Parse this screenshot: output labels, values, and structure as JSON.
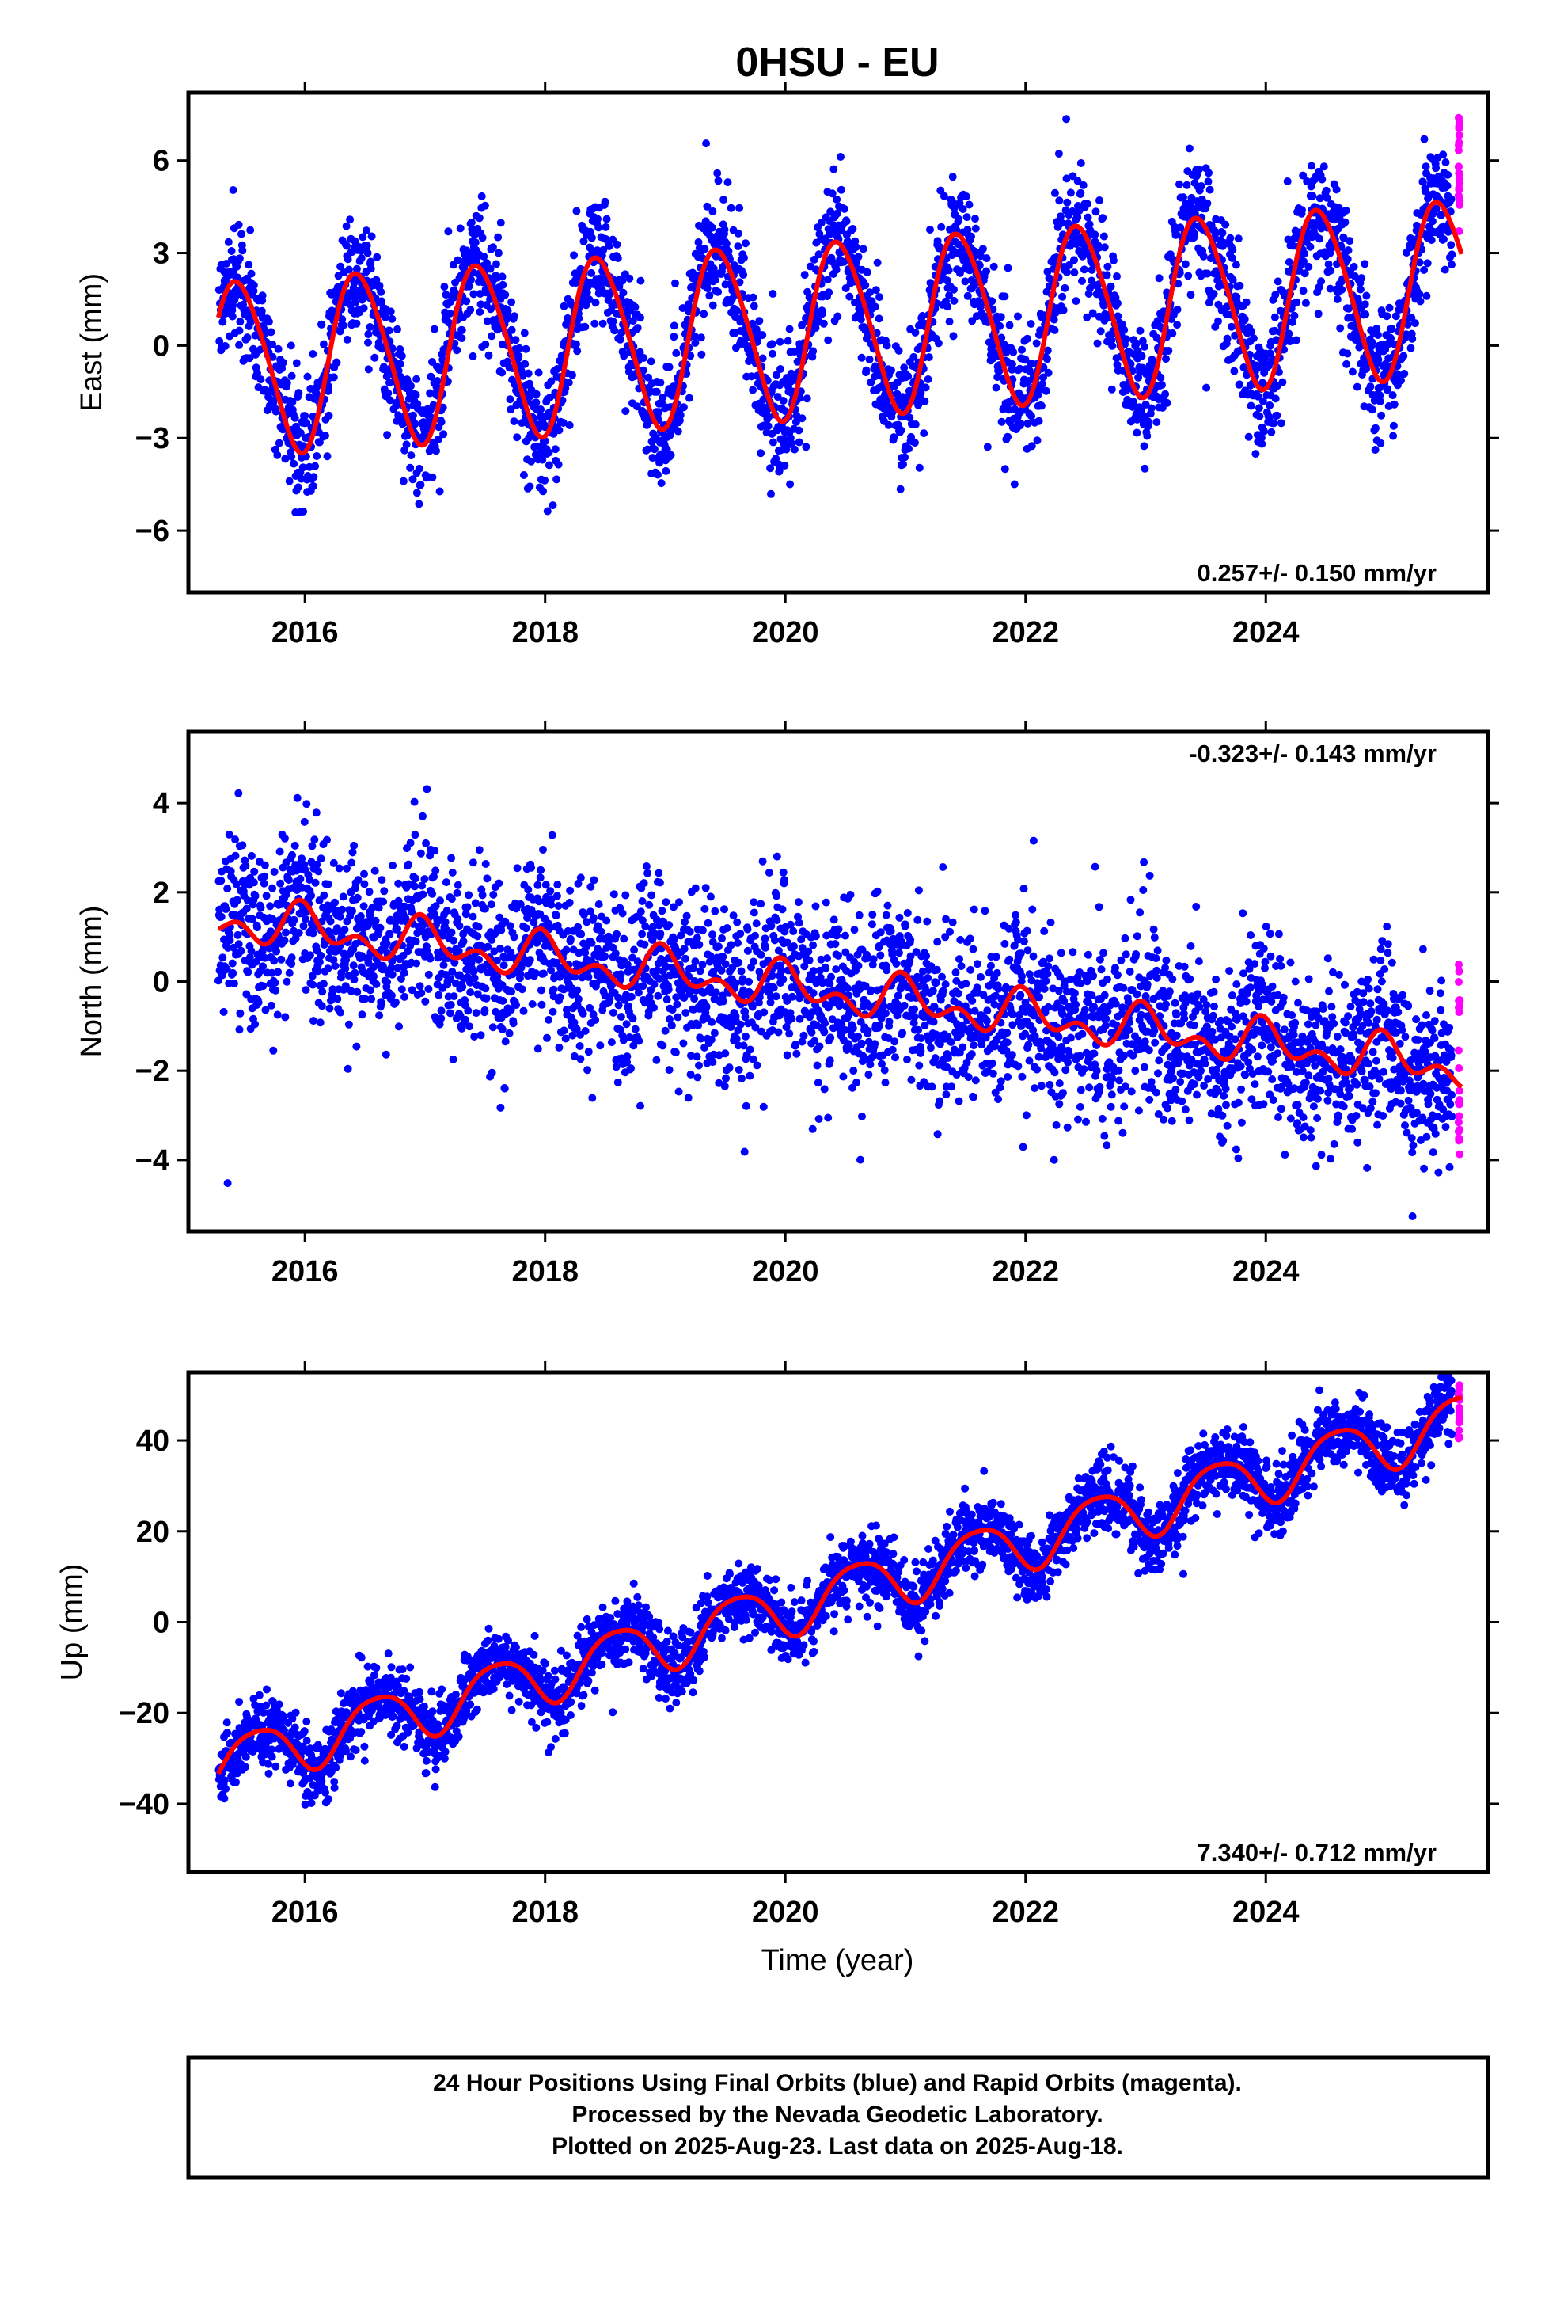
{
  "title": "0HSU - EU",
  "colors": {
    "final_orbits": "#0000ff",
    "rapid_orbits": "#ff00ff",
    "model_fit": "#ff0000",
    "frame": "#000000"
  },
  "chart_data": [
    {
      "type": "scatter",
      "name": "east",
      "ylabel": "East (mm)",
      "xlabel": "",
      "xlim": [
        2015.03,
        2025.85
      ],
      "ylim": [
        -8,
        8.2
      ],
      "yticks": [
        -6,
        -3,
        0,
        3,
        6
      ],
      "xticks": [
        2016,
        2018,
        2020,
        2022,
        2024
      ],
      "rate_label": "0.257+/- 0.150 mm/yr",
      "rate_position": "bottom-right",
      "data_start": 2015.28,
      "data_end": 2025.63,
      "rapid_start": 2025.55,
      "model": {
        "offset": -0.8,
        "rate": 0.257,
        "annual_amplitude": 2.8,
        "annual_peak": 0.45,
        "semiannual_amplitude": 0.3,
        "semiannual_peak": 0.3
      },
      "scatter_sigma": 1.0,
      "rapid_range": [
        3.4,
        7.4
      ],
      "series": [
        {
          "name": "Final Orbits",
          "kind": "points",
          "color": "#0000ff"
        },
        {
          "name": "Rapid Orbits",
          "kind": "points",
          "color": "#ff00ff"
        },
        {
          "name": "Model",
          "kind": "line",
          "color": "#ff0000"
        }
      ]
    },
    {
      "type": "scatter",
      "name": "north",
      "ylabel": "North (mm)",
      "xlabel": "",
      "xlim": [
        2015.03,
        2025.85
      ],
      "ylim": [
        -5.6,
        5.6
      ],
      "yticks": [
        -4,
        -2,
        0,
        2,
        4
      ],
      "xticks": [
        2016,
        2018,
        2020,
        2022,
        2024
      ],
      "rate_label": "-0.323+/- 0.143 mm/yr",
      "rate_position": "top-right",
      "data_start": 2015.28,
      "data_end": 2025.63,
      "rapid_start": 2025.55,
      "model": {
        "offset": 1.5,
        "rate": -0.323,
        "annual_amplitude": 0.35,
        "annual_peak": 0.0,
        "semiannual_amplitude": 0.3,
        "semiannual_peak": 0.45
      },
      "scatter_sigma": 0.95,
      "rapid_range": [
        -3.9,
        0.4
      ],
      "series": [
        {
          "name": "Final Orbits",
          "kind": "points",
          "color": "#0000ff"
        },
        {
          "name": "Rapid Orbits",
          "kind": "points",
          "color": "#ff00ff"
        },
        {
          "name": "Model",
          "kind": "line",
          "color": "#ff0000"
        }
      ]
    },
    {
      "type": "scatter",
      "name": "up",
      "ylabel": "Up (mm)",
      "xlabel": "Time (year)",
      "xlim": [
        2015.03,
        2025.85
      ],
      "ylim": [
        -55,
        55
      ],
      "yticks": [
        -40,
        -20,
        0,
        20,
        40
      ],
      "xticks": [
        2016,
        2018,
        2020,
        2022,
        2024
      ],
      "rate_label": "7.340+/- 0.712 mm/yr",
      "rate_position": "bottom-right",
      "data_start": 2015.28,
      "data_end": 2025.63,
      "rapid_start": 2025.55,
      "model": {
        "offset": -33.5,
        "rate": 7.34,
        "annual_amplitude": 6.0,
        "annual_peak": 0.6,
        "semiannual_amplitude": 1.0,
        "semiannual_peak": 0.35
      },
      "scatter_sigma": 3.8,
      "rapid_range": [
        40,
        53
      ],
      "series": [
        {
          "name": "Final Orbits",
          "kind": "points",
          "color": "#0000ff"
        },
        {
          "name": "Rapid Orbits",
          "kind": "points",
          "color": "#ff00ff"
        },
        {
          "name": "Model",
          "kind": "line",
          "color": "#ff0000"
        }
      ]
    }
  ],
  "footer": {
    "line1": "24 Hour Positions Using Final Orbits (blue) and Rapid Orbits (magenta).",
    "line2": "Processed by the Nevada Geodetic Laboratory.",
    "line3": "Plotted on 2025-Aug-23. Last data on 2025-Aug-18."
  }
}
